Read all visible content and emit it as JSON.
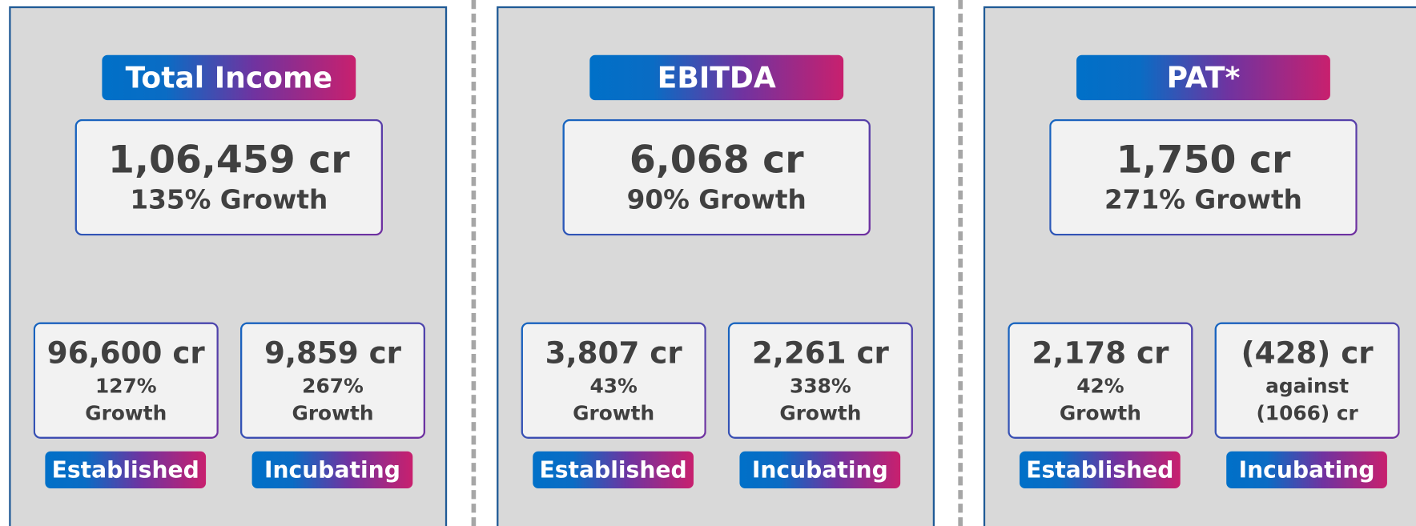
{
  "panels": [
    {
      "title": "Total Income",
      "main": {
        "value": "1,06,459 cr",
        "growth": "135% Growth"
      },
      "segments": [
        {
          "value": "96,600 cr",
          "line1": "127%",
          "line2": "Growth",
          "label": "Established"
        },
        {
          "value": "9,859 cr",
          "line1": "267%",
          "line2": "Growth",
          "label": "Incubating"
        }
      ]
    },
    {
      "title": "EBITDA",
      "main": {
        "value": "6,068 cr",
        "growth": "90% Growth"
      },
      "segments": [
        {
          "value": "3,807 cr",
          "line1": "43%",
          "line2": "Growth",
          "label": "Established"
        },
        {
          "value": "2,261 cr",
          "line1": "338%",
          "line2": "Growth",
          "label": "Incubating"
        }
      ]
    },
    {
      "title": "PAT*",
      "main": {
        "value": "1,750 cr",
        "growth": "271% Growth"
      },
      "segments": [
        {
          "value": "2,178 cr",
          "line1": "42%",
          "line2": "Growth",
          "label": "Established"
        },
        {
          "value": "(428) cr",
          "line1": "against",
          "line2": "(1066) cr",
          "label": "Incubating"
        }
      ]
    }
  ]
}
